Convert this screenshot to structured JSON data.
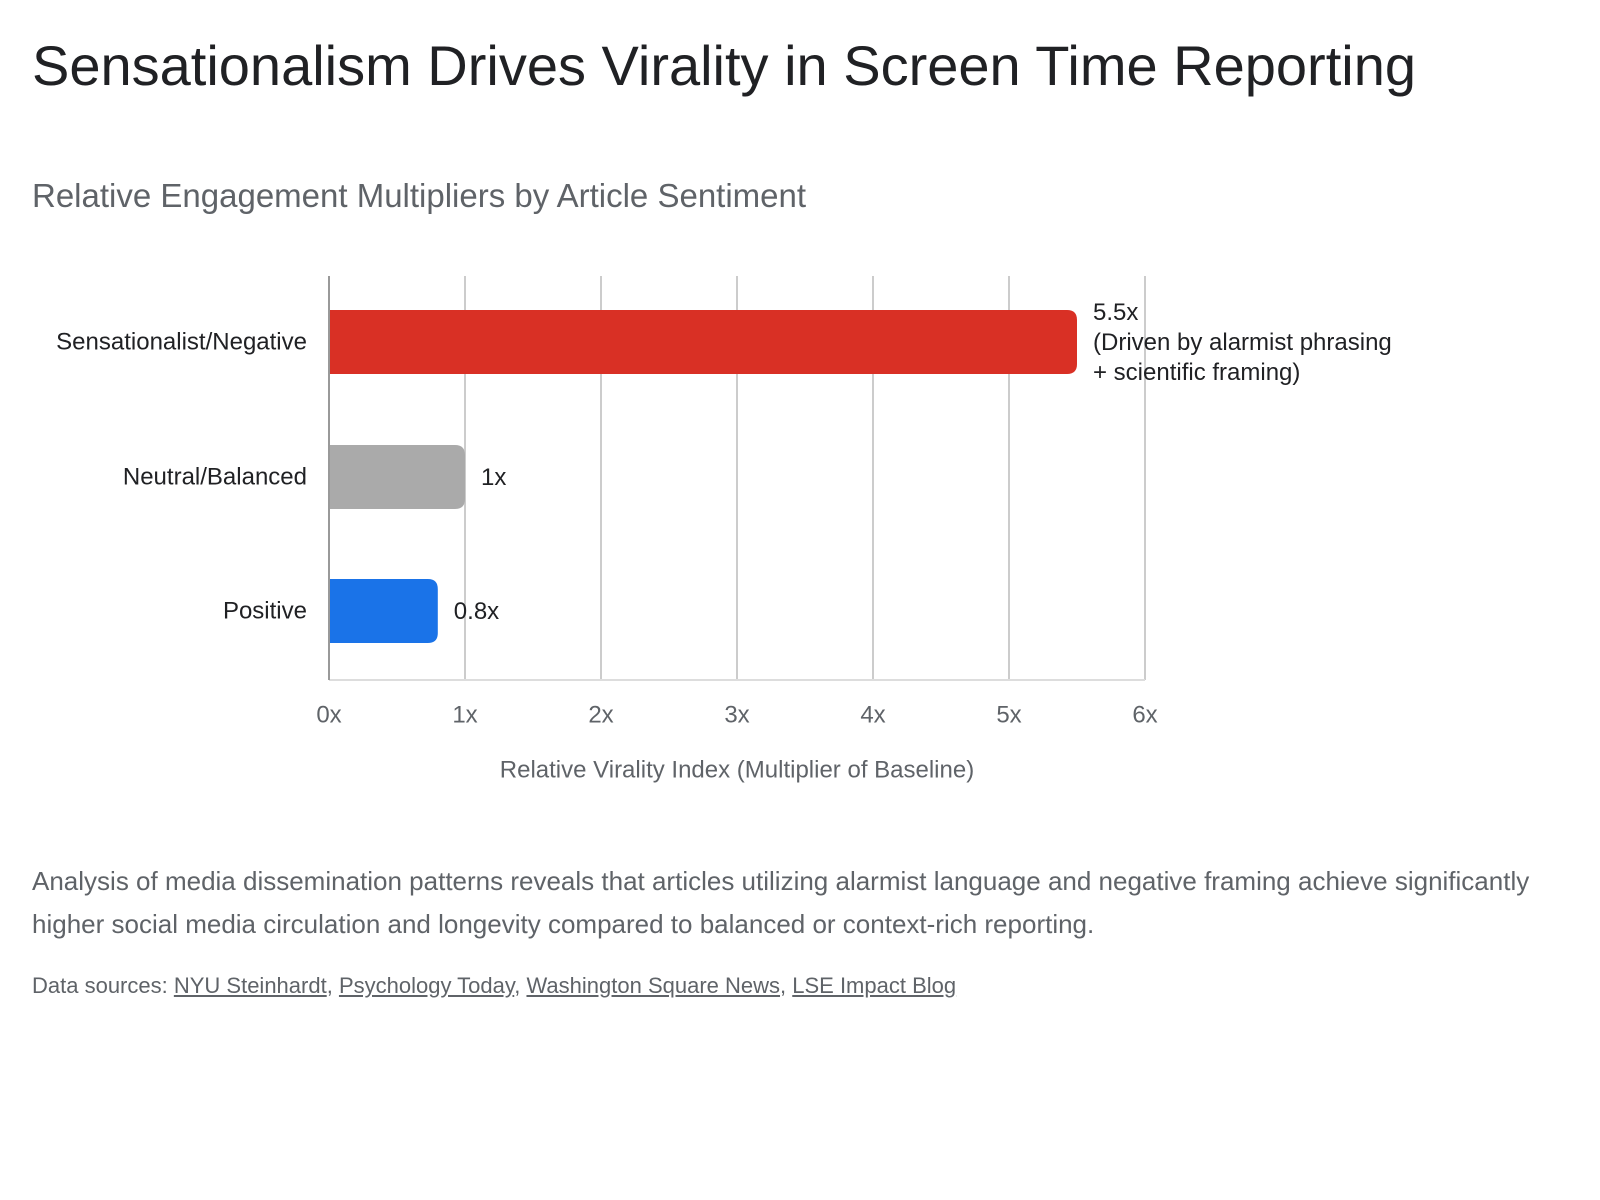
{
  "page": {
    "title": "Sensationalism Drives Virality in Screen Time Reporting",
    "description": "Analysis of media dissemination patterns reveals that articles utilizing alarmist language and negative framing achieve significantly higher social media circulation and longevity compared to balanced or context-rich reporting.",
    "sources_prefix": "Data sources: ",
    "sources": [
      "NYU Steinhardt",
      "Psychology Today",
      "Washington Square News",
      "LSE Impact Blog"
    ]
  },
  "chart_data": {
    "type": "bar",
    "orientation": "horizontal",
    "title": "Relative Engagement Multipliers by Article Sentiment",
    "categories": [
      "Sensationalist/Negative",
      "Neutral/Balanced",
      "Positive"
    ],
    "values": [
      5.5,
      1,
      0.8
    ],
    "value_labels": [
      [
        "5.5x",
        "(Driven by alarmist phrasing",
        "+ scientific framing)"
      ],
      [
        "1x"
      ],
      [
        "0.8x"
      ]
    ],
    "colors": [
      "#d93025",
      "#aaaaaa",
      "#1a73e8"
    ],
    "xlabel": "Relative Virality Index (Multiplier of Baseline)",
    "ylabel": "",
    "xlim": [
      0,
      6
    ],
    "xticks": [
      0,
      1,
      2,
      3,
      4,
      5,
      6
    ],
    "xtick_labels": [
      "0x",
      "1x",
      "2x",
      "3x",
      "4x",
      "5x",
      "6x"
    ],
    "grid": true,
    "legend": "none"
  }
}
